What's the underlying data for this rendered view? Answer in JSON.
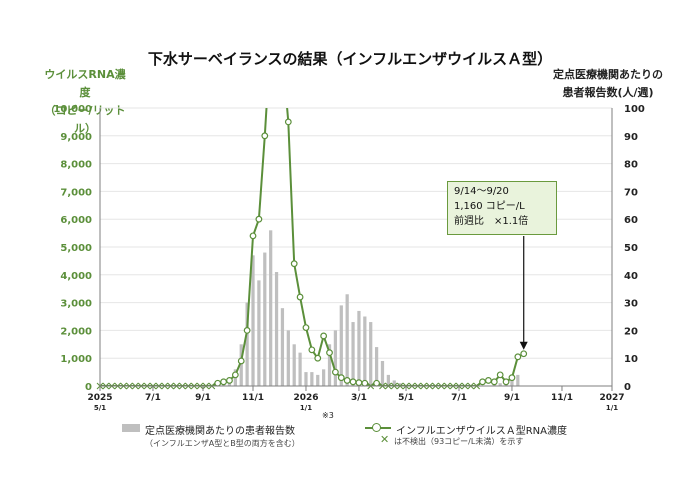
{
  "title": "下水サーベイランスの結果（インフルエンザウイルスＡ型）",
  "left_axis_label_line1": "ウイルスRNA濃度",
  "left_axis_label_line2": "（コピー/リットル）",
  "right_axis_label_line1": "定点医療機関あたりの",
  "right_axis_label_line2": "患者報告数(人/週)",
  "callout": {
    "line1": "9/14～9/20",
    "line2": "1,160 コピー/L",
    "line3": "前週比　×1.1倍"
  },
  "legend": {
    "bar_label": "定点医療機関あたりの患者報告数",
    "bar_note": "（インフルエンザA型とB型の両方を含む）",
    "bar_marker": "※3",
    "line_label": "インフルエンザウイルスＡ型RNA濃度",
    "line_note": "は不検出（93コピー/L未満）を示す"
  },
  "colors": {
    "line": "#5b8f3a",
    "bar": "#bfbfbf",
    "left_axis": "#5b8f3a"
  },
  "chart_data": {
    "type": "bar+line",
    "x_unit": "week",
    "x_ticks": [
      {
        "week": 0,
        "label": "2025",
        "sub": "5/1"
      },
      {
        "week": 9,
        "label": "7/1",
        "sub": ""
      },
      {
        "week": 17.5,
        "label": "9/1",
        "sub": ""
      },
      {
        "week": 26,
        "label": "11/1",
        "sub": ""
      },
      {
        "week": 35,
        "label": "2026",
        "sub": "1/1"
      },
      {
        "week": 44,
        "label": "3/1",
        "sub": ""
      },
      {
        "week": 52,
        "label": "5/1",
        "sub": ""
      },
      {
        "week": 61,
        "label": "7/1",
        "sub": ""
      },
      {
        "week": 70,
        "label": "9/1",
        "sub": ""
      },
      {
        "week": 78.5,
        "label": "11/1",
        "sub": ""
      },
      {
        "week": 87,
        "label": "2027",
        "sub": "1/1"
      }
    ],
    "x_range": [
      0,
      87
    ],
    "left_axis": {
      "min": 0,
      "max": 10000,
      "step": 1000,
      "tick_labels": [
        "0",
        "1,000",
        "2,000",
        "3,000",
        "4,000",
        "5,000",
        "6,000",
        "7,000",
        "8,000",
        "9,000",
        "10,000"
      ]
    },
    "right_axis": {
      "min": 0,
      "max": 100,
      "step": 10,
      "tick_labels": [
        "0",
        "10",
        "20",
        "30",
        "40",
        "50",
        "60",
        "70",
        "80",
        "90",
        "100"
      ]
    },
    "bars": [
      {
        "week": 20,
        "value": 0.5
      },
      {
        "week": 21,
        "value": 1.5
      },
      {
        "week": 22,
        "value": 3
      },
      {
        "week": 23,
        "value": 6
      },
      {
        "week": 24,
        "value": 15
      },
      {
        "week": 25,
        "value": 30
      },
      {
        "week": 26,
        "value": 47
      },
      {
        "week": 27,
        "value": 38
      },
      {
        "week": 28,
        "value": 48
      },
      {
        "week": 29,
        "value": 56
      },
      {
        "week": 30,
        "value": 41
      },
      {
        "week": 31,
        "value": 28
      },
      {
        "week": 32,
        "value": 20
      },
      {
        "week": 33,
        "value": 15
      },
      {
        "week": 34,
        "value": 12
      },
      {
        "week": 35,
        "value": 5
      },
      {
        "week": 36,
        "value": 5
      },
      {
        "week": 37,
        "value": 4
      },
      {
        "week": 38,
        "value": 6
      },
      {
        "week": 39,
        "value": 15
      },
      {
        "week": 40,
        "value": 20
      },
      {
        "week": 41,
        "value": 29
      },
      {
        "week": 42,
        "value": 33
      },
      {
        "week": 43,
        "value": 23
      },
      {
        "week": 44,
        "value": 27
      },
      {
        "week": 45,
        "value": 25
      },
      {
        "week": 46,
        "value": 23
      },
      {
        "week": 47,
        "value": 14
      },
      {
        "week": 48,
        "value": 9
      },
      {
        "week": 49,
        "value": 4
      },
      {
        "week": 50,
        "value": 2
      },
      {
        "week": 51,
        "value": 1
      },
      {
        "week": 67,
        "value": 0.5
      },
      {
        "week": 68,
        "value": 1
      },
      {
        "week": 69,
        "value": 2
      },
      {
        "week": 70,
        "value": 3
      },
      {
        "week": 71,
        "value": 4
      }
    ],
    "line_series": {
      "name": "インフルエンザウイルスＡ型RNA濃度",
      "points": [
        {
          "week": 0,
          "value": 0,
          "nd": true
        },
        {
          "week": 1,
          "value": 0,
          "nd": true
        },
        {
          "week": 2,
          "value": 0,
          "nd": true
        },
        {
          "week": 3,
          "value": 0,
          "nd": true
        },
        {
          "week": 4,
          "value": 0,
          "nd": true
        },
        {
          "week": 5,
          "value": 0,
          "nd": true
        },
        {
          "week": 6,
          "value": 0,
          "nd": true
        },
        {
          "week": 7,
          "value": 0,
          "nd": true
        },
        {
          "week": 8,
          "value": 0,
          "nd": true
        },
        {
          "week": 9,
          "value": 0,
          "nd": true
        },
        {
          "week": 10,
          "value": 0,
          "nd": true
        },
        {
          "week": 11,
          "value": 0,
          "nd": true
        },
        {
          "week": 12,
          "value": 0,
          "nd": true
        },
        {
          "week": 13,
          "value": 0,
          "nd": true
        },
        {
          "week": 14,
          "value": 0,
          "nd": true
        },
        {
          "week": 15,
          "value": 0,
          "nd": true
        },
        {
          "week": 16,
          "value": 0,
          "nd": true
        },
        {
          "week": 17,
          "value": 0,
          "nd": true
        },
        {
          "week": 18,
          "value": 0,
          "nd": true
        },
        {
          "week": 19,
          "value": 0,
          "nd": true
        },
        {
          "week": 20,
          "value": 100,
          "nd": false
        },
        {
          "week": 21,
          "value": 150,
          "nd": false
        },
        {
          "week": 22,
          "value": 200,
          "nd": false
        },
        {
          "week": 23,
          "value": 400,
          "nd": false
        },
        {
          "week": 24,
          "value": 900,
          "nd": false
        },
        {
          "week": 25,
          "value": 2000,
          "nd": false
        },
        {
          "week": 26,
          "value": 5400,
          "nd": false
        },
        {
          "week": 27,
          "value": 6000,
          "nd": false
        },
        {
          "week": 28,
          "value": 9000,
          "nd": false
        },
        {
          "week": 29,
          "value": 12500,
          "nd": false
        },
        {
          "week": 31,
          "value": 12000,
          "nd": false
        },
        {
          "week": 32,
          "value": 9500,
          "nd": false
        },
        {
          "week": 33,
          "value": 4400,
          "nd": false
        },
        {
          "week": 34,
          "value": 3200,
          "nd": false
        },
        {
          "week": 35,
          "value": 2100,
          "nd": false
        },
        {
          "week": 36,
          "value": 1300,
          "nd": false
        },
        {
          "week": 37,
          "value": 1000,
          "nd": false
        },
        {
          "week": 38,
          "value": 1800,
          "nd": false
        },
        {
          "week": 39,
          "value": 1200,
          "nd": false
        },
        {
          "week": 40,
          "value": 500,
          "nd": false
        },
        {
          "week": 41,
          "value": 300,
          "nd": false
        },
        {
          "week": 42,
          "value": 200,
          "nd": false
        },
        {
          "week": 43,
          "value": 150,
          "nd": false
        },
        {
          "week": 44,
          "value": 120,
          "nd": false
        },
        {
          "week": 45,
          "value": 100,
          "nd": false
        },
        {
          "week": 46,
          "value": 0,
          "nd": true
        },
        {
          "week": 47,
          "value": 100,
          "nd": false
        },
        {
          "week": 48,
          "value": 0,
          "nd": true
        },
        {
          "week": 49,
          "value": 0,
          "nd": true
        },
        {
          "week": 50,
          "value": 0,
          "nd": true
        },
        {
          "week": 51,
          "value": 0,
          "nd": true
        },
        {
          "week": 52,
          "value": 0,
          "nd": true
        },
        {
          "week": 53,
          "value": 0,
          "nd": true
        },
        {
          "week": 54,
          "value": 0,
          "nd": true
        },
        {
          "week": 55,
          "value": 0,
          "nd": true
        },
        {
          "week": 56,
          "value": 0,
          "nd": true
        },
        {
          "week": 57,
          "value": 0,
          "nd": true
        },
        {
          "week": 58,
          "value": 0,
          "nd": true
        },
        {
          "week": 59,
          "value": 0,
          "nd": true
        },
        {
          "week": 60,
          "value": 0,
          "nd": true
        },
        {
          "week": 61,
          "value": 0,
          "nd": true
        },
        {
          "week": 62,
          "value": 0,
          "nd": true
        },
        {
          "week": 63,
          "value": 0,
          "nd": true
        },
        {
          "week": 64,
          "value": 0,
          "nd": true
        },
        {
          "week": 65,
          "value": 150,
          "nd": false
        },
        {
          "week": 66,
          "value": 200,
          "nd": false
        },
        {
          "week": 67,
          "value": 150,
          "nd": false
        },
        {
          "week": 68,
          "value": 400,
          "nd": false
        },
        {
          "week": 69,
          "value": 150,
          "nd": false
        },
        {
          "week": 70,
          "value": 300,
          "nd": false
        },
        {
          "week": 71,
          "value": 1050,
          "nd": false
        },
        {
          "week": 72,
          "value": 1160,
          "nd": false
        }
      ]
    },
    "callout_point_week": 72,
    "callout_point_value": 1160
  }
}
